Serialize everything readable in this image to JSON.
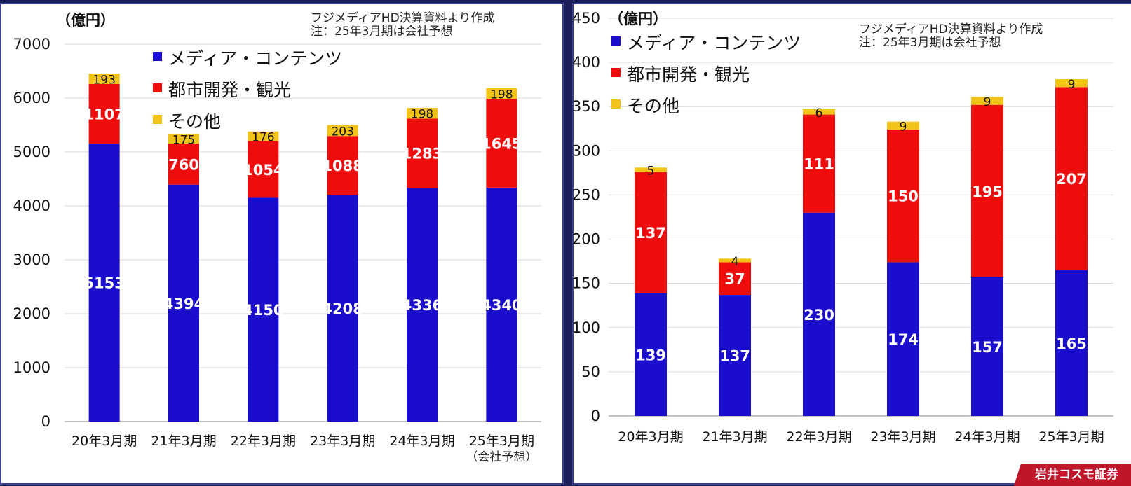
{
  "colors": {
    "media": "#1a0dcc",
    "urban": "#ee0d0d",
    "other": "#f2c41a",
    "grid": "#d9d9d9"
  },
  "legend": [
    "メディア・コンテンツ",
    "都市開発・観光",
    "その他"
  ],
  "overlay": {
    "banner": "岩井コスモ証券"
  },
  "chart_data": [
    {
      "type": "bar",
      "stacked": true,
      "unit": "（億円）",
      "note": [
        "フジメディアHD決算資料より作成",
        "注：25年3月期は会社予想"
      ],
      "categories": [
        "20年3月期",
        "21年3月期",
        "22年3月期",
        "23年3月期",
        "24年3月期",
        "25年3月期"
      ],
      "category_sublabel": {
        "5": "（会社予想）"
      },
      "series": [
        {
          "name": "メディア・コンテンツ",
          "values": [
            5153,
            4394,
            4150,
            4208,
            4336,
            4340
          ]
        },
        {
          "name": "都市開発・観光",
          "values": [
            1107,
            760,
            1054,
            1088,
            1283,
            1645
          ]
        },
        {
          "name": "その他",
          "values": [
            193,
            175,
            176,
            203,
            198,
            198
          ]
        }
      ],
      "ylim": [
        0,
        7000
      ],
      "yticks": [
        0,
        1000,
        2000,
        3000,
        4000,
        5000,
        6000,
        7000
      ],
      "grid": true,
      "legend_position": "top-center"
    },
    {
      "type": "bar",
      "stacked": true,
      "unit": "（億円）",
      "note": [
        "フジメディアHD決算資料より作成",
        "注：25年3月期は会社予想"
      ],
      "categories": [
        "20年3月期",
        "21年3月期",
        "22年3月期",
        "23年3月期",
        "24年3月期",
        "25年3月期"
      ],
      "series": [
        {
          "name": "メディア・コンテンツ",
          "values": [
            139,
            137,
            230,
            174,
            157,
            165
          ]
        },
        {
          "name": "都市開発・観光",
          "values": [
            137,
            37,
            111,
            150,
            195,
            207
          ]
        },
        {
          "name": "その他",
          "values": [
            5,
            4,
            6,
            9,
            9,
            9
          ]
        }
      ],
      "ylim": [
        0,
        450
      ],
      "yticks": [
        0,
        50,
        100,
        150,
        200,
        250,
        300,
        350,
        400,
        450
      ],
      "grid": true,
      "legend_position": "top-left"
    }
  ]
}
